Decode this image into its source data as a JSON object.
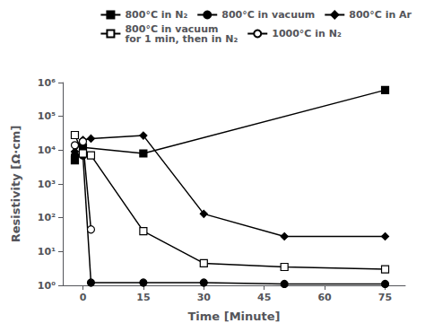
{
  "chart_data": {
    "type": "line",
    "xlabel": "Time [Minute]",
    "ylabel": "Resistivity [Ω·cm]",
    "log": "y",
    "xlim": [
      -5,
      80
    ],
    "xticks": [
      0,
      15,
      30,
      45,
      60,
      75
    ],
    "ylim": [
      1,
      1000000
    ],
    "yticks": [
      {
        "value": 1,
        "label": "10⁰"
      },
      {
        "value": 10,
        "label": "10¹"
      },
      {
        "value": 100,
        "label": "10²"
      },
      {
        "value": 1000,
        "label": "10³"
      },
      {
        "value": 10000,
        "label": "10⁴"
      },
      {
        "value": 100000,
        "label": "10⁵"
      },
      {
        "value": 1000000,
        "label": "10⁶"
      }
    ],
    "grid": false,
    "legend": "upper right",
    "series": [
      {
        "name": "800°C in N₂",
        "color": "black",
        "marker": "square",
        "x": [
          -2,
          0,
          15,
          75
        ],
        "values": [
          5000,
          12000,
          8000,
          600000
        ]
      },
      {
        "name": "800°C in vacuum",
        "color": "black",
        "marker": "circle",
        "x": [
          -2,
          0,
          2,
          15,
          30,
          50,
          75
        ],
        "values": [
          7000,
          7000,
          1.2,
          1.2,
          1.2,
          1.1,
          1.1
        ]
      },
      {
        "name": "800°C in Ar",
        "color": "black",
        "marker": "diamond",
        "x": [
          -2,
          0,
          2,
          15,
          30,
          50,
          75
        ],
        "values": [
          9000,
          20000,
          22000,
          27000,
          130,
          28,
          28
        ]
      },
      {
        "name": "800°C in vacuum\nfor 1 min, then in N₂",
        "color": "black",
        "marker": "open-square",
        "x": [
          -2,
          0,
          2,
          15,
          30,
          50,
          75
        ],
        "values": [
          28000,
          8000,
          7000,
          40,
          4.5,
          3.5,
          3.0
        ]
      },
      {
        "name": "1000°C in N₂",
        "color": "black",
        "marker": "open-circle",
        "x": [
          -2,
          0,
          2
        ],
        "values": [
          14000,
          18000,
          45
        ]
      }
    ]
  }
}
